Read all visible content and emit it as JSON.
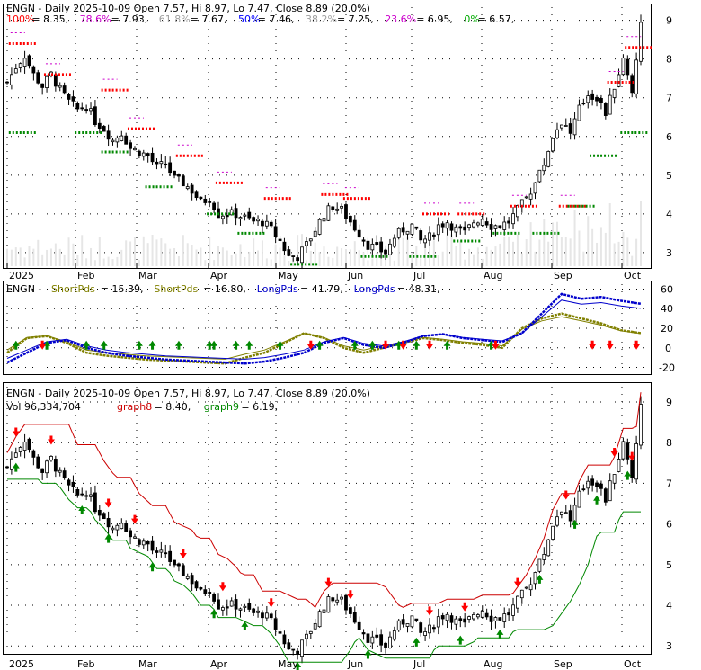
{
  "chart_data": [
    {
      "type": "candlestick",
      "title": "ENGN - Daily 2025-10-09 Open 7.57, Hi 8.97, Lo 7.47, Close 8.89 (20.0%)",
      "fib_levels": [
        {
          "label": "100%",
          "value": 8.35,
          "color": "#ff0000"
        },
        {
          "label": "78.6%",
          "value": 7.93,
          "color": "#cc00cc"
        },
        {
          "label": "61.8%",
          "value": 7.67,
          "color": "#a0a0a0"
        },
        {
          "label": "50%",
          "value": 7.46,
          "color": "#0000ff"
        },
        {
          "label": "38.2%",
          "value": 7.25,
          "color": "#a0a0a0"
        },
        {
          "label": "23.6%",
          "value": 6.95,
          "color": "#cc00cc"
        },
        {
          "label": "0%",
          "value": 6.57,
          "color": "#00aa00"
        }
      ],
      "y_ticks": [
        3,
        4,
        5,
        6,
        7,
        8,
        9
      ],
      "ylim": [
        2.65,
        9.2
      ],
      "x_labels": [
        "2025",
        "Feb",
        "Mar",
        "Apr",
        "May",
        "Jun",
        "Jul",
        "Aug",
        "Sep",
        "Oct"
      ],
      "close_path": [
        {
          "x": 0,
          "y": 7.4
        },
        {
          "x": 2,
          "y": 7.8
        },
        {
          "x": 4,
          "y": 8.1
        },
        {
          "x": 6,
          "y": 7.6
        },
        {
          "x": 8,
          "y": 7.3
        },
        {
          "x": 10,
          "y": 7.6
        },
        {
          "x": 12,
          "y": 7.2
        },
        {
          "x": 14,
          "y": 6.9
        },
        {
          "x": 16,
          "y": 6.7
        },
        {
          "x": 18,
          "y": 6.8
        },
        {
          "x": 20,
          "y": 6.4
        },
        {
          "x": 22,
          "y": 6.2
        },
        {
          "x": 24,
          "y": 5.9
        },
        {
          "x": 26,
          "y": 6.1
        },
        {
          "x": 28,
          "y": 5.7
        },
        {
          "x": 30,
          "y": 5.6
        },
        {
          "x": 32,
          "y": 5.5
        },
        {
          "x": 34,
          "y": 5.2
        },
        {
          "x": 36,
          "y": 5.3
        },
        {
          "x": 38,
          "y": 4.9
        },
        {
          "x": 40,
          "y": 4.8
        },
        {
          "x": 42,
          "y": 4.6
        },
        {
          "x": 44,
          "y": 4.3
        },
        {
          "x": 46,
          "y": 4.4
        },
        {
          "x": 48,
          "y": 4.0
        },
        {
          "x": 50,
          "y": 4.0
        },
        {
          "x": 52,
          "y": 4.0
        },
        {
          "x": 54,
          "y": 3.9
        },
        {
          "x": 56,
          "y": 3.8
        },
        {
          "x": 58,
          "y": 3.8
        },
        {
          "x": 60,
          "y": 3.6
        },
        {
          "x": 62,
          "y": 3.3
        },
        {
          "x": 64,
          "y": 2.9
        },
        {
          "x": 66,
          "y": 2.9
        },
        {
          "x": 68,
          "y": 3.2
        },
        {
          "x": 70,
          "y": 3.6
        },
        {
          "x": 72,
          "y": 4.0
        },
        {
          "x": 74,
          "y": 4.2
        },
        {
          "x": 76,
          "y": 4.1
        },
        {
          "x": 78,
          "y": 3.8
        },
        {
          "x": 80,
          "y": 3.5
        },
        {
          "x": 82,
          "y": 3.2
        },
        {
          "x": 84,
          "y": 3.1
        },
        {
          "x": 86,
          "y": 3.0
        },
        {
          "x": 88,
          "y": 3.4
        },
        {
          "x": 90,
          "y": 3.6
        },
        {
          "x": 92,
          "y": 3.7
        },
        {
          "x": 94,
          "y": 3.3
        },
        {
          "x": 96,
          "y": 3.4
        },
        {
          "x": 98,
          "y": 3.7
        },
        {
          "x": 100,
          "y": 3.8
        },
        {
          "x": 102,
          "y": 3.6
        },
        {
          "x": 104,
          "y": 3.5
        },
        {
          "x": 106,
          "y": 3.8
        },
        {
          "x": 108,
          "y": 3.9
        },
        {
          "x": 110,
          "y": 3.7
        },
        {
          "x": 112,
          "y": 3.7
        },
        {
          "x": 114,
          "y": 3.8
        },
        {
          "x": 116,
          "y": 4.1
        },
        {
          "x": 118,
          "y": 4.4
        },
        {
          "x": 120,
          "y": 4.8
        },
        {
          "x": 122,
          "y": 5.3
        },
        {
          "x": 124,
          "y": 6.0
        },
        {
          "x": 126,
          "y": 6.4
        },
        {
          "x": 128,
          "y": 6.1
        },
        {
          "x": 130,
          "y": 6.7
        },
        {
          "x": 132,
          "y": 7.1
        },
        {
          "x": 134,
          "y": 7.0
        },
        {
          "x": 136,
          "y": 6.6
        },
        {
          "x": 138,
          "y": 7.3
        },
        {
          "x": 140,
          "y": 8.0
        },
        {
          "x": 142,
          "y": 7.2
        },
        {
          "x": 144,
          "y": 8.89
        }
      ],
      "red_markers": [
        {
          "x": 2,
          "y": 8.4
        },
        {
          "x": 10,
          "y": 7.6
        },
        {
          "x": 23,
          "y": 7.2
        },
        {
          "x": 29,
          "y": 6.2
        },
        {
          "x": 40,
          "y": 5.5
        },
        {
          "x": 49,
          "y": 4.8
        },
        {
          "x": 60,
          "y": 4.4
        },
        {
          "x": 73,
          "y": 4.5
        },
        {
          "x": 78,
          "y": 4.4
        },
        {
          "x": 96,
          "y": 4.0
        },
        {
          "x": 104,
          "y": 4.0
        },
        {
          "x": 116,
          "y": 4.2
        },
        {
          "x": 127,
          "y": 4.2
        },
        {
          "x": 138,
          "y": 7.4
        },
        {
          "x": 142,
          "y": 8.3
        }
      ],
      "green_markers": [
        {
          "x": 2,
          "y": 6.1
        },
        {
          "x": 17,
          "y": 6.1
        },
        {
          "x": 23,
          "y": 5.6
        },
        {
          "x": 33,
          "y": 4.7
        },
        {
          "x": 47,
          "y": 4.0
        },
        {
          "x": 54,
          "y": 3.5
        },
        {
          "x": 66,
          "y": 2.7
        },
        {
          "x": 82,
          "y": 2.9
        },
        {
          "x": 93,
          "y": 2.9
        },
        {
          "x": 103,
          "y": 3.3
        },
        {
          "x": 112,
          "y": 3.5
        },
        {
          "x": 121,
          "y": 3.5
        },
        {
          "x": 129,
          "y": 4.2
        },
        {
          "x": 134,
          "y": 5.5
        },
        {
          "x": 141,
          "y": 6.1
        }
      ]
    },
    {
      "type": "line",
      "title": "ENGN",
      "legend": [
        {
          "label": "ShortPds",
          "value": "15.39",
          "color": "#808000"
        },
        {
          "label": "ShortPds",
          "value": "16.80",
          "color": "#808000"
        },
        {
          "label": "LongPds",
          "value": "41.79",
          "color": "#0000cc"
        },
        {
          "label": "LongPds",
          "value": "48.31",
          "color": "#0000cc"
        }
      ],
      "y_ticks": [
        -20,
        0,
        20,
        40,
        60
      ],
      "ylim": [
        -25,
        65
      ],
      "series": [
        {
          "name": "ShortPds",
          "color": "#808000",
          "values": [
            -5,
            10,
            12,
            5,
            -5,
            -8,
            -10,
            -12,
            -13,
            -14,
            -15,
            -16,
            -10,
            -5,
            5,
            15,
            10,
            0,
            -5,
            0,
            5,
            10,
            8,
            5,
            3,
            0,
            20,
            30,
            35,
            30,
            25,
            18,
            15
          ]
        },
        {
          "name": "LongPds",
          "color": "#0000cc",
          "values": [
            -15,
            -5,
            5,
            8,
            0,
            -5,
            -8,
            -10,
            -12,
            -13,
            -14,
            -15,
            -16,
            -14,
            -10,
            -5,
            5,
            10,
            3,
            0,
            5,
            12,
            14,
            10,
            8,
            6,
            15,
            35,
            55,
            50,
            52,
            48,
            45
          ]
        }
      ],
      "up_arrows": [
        2,
        9,
        18,
        22,
        30,
        33,
        39,
        46,
        47,
        52,
        55,
        62,
        71,
        79,
        83,
        89,
        93,
        100,
        110
      ],
      "down_arrows": [
        8,
        69,
        86,
        90,
        96,
        111,
        133,
        137,
        143
      ]
    },
    {
      "type": "candlestick",
      "title": "ENGN - Daily 2025-10-09 Open 7.57, Hi 8.97, Lo 7.47, Close 8.89 (20.0%)",
      "subtitle": "Vol 96,334,704",
      "legend": [
        {
          "label": "graph8",
          "value": "8.40",
          "color": "#cc0000"
        },
        {
          "label": "graph9",
          "value": "6.19",
          "color": "#008800"
        }
      ],
      "y_ticks": [
        3,
        4,
        5,
        6,
        7,
        8,
        9
      ],
      "ylim": [
        2.85,
        9.2
      ],
      "x_labels": [
        "2025",
        "Feb",
        "Mar",
        "Apr",
        "May",
        "Jun",
        "Jul",
        "Aug",
        "Sep",
        "Oct"
      ]
    }
  ]
}
